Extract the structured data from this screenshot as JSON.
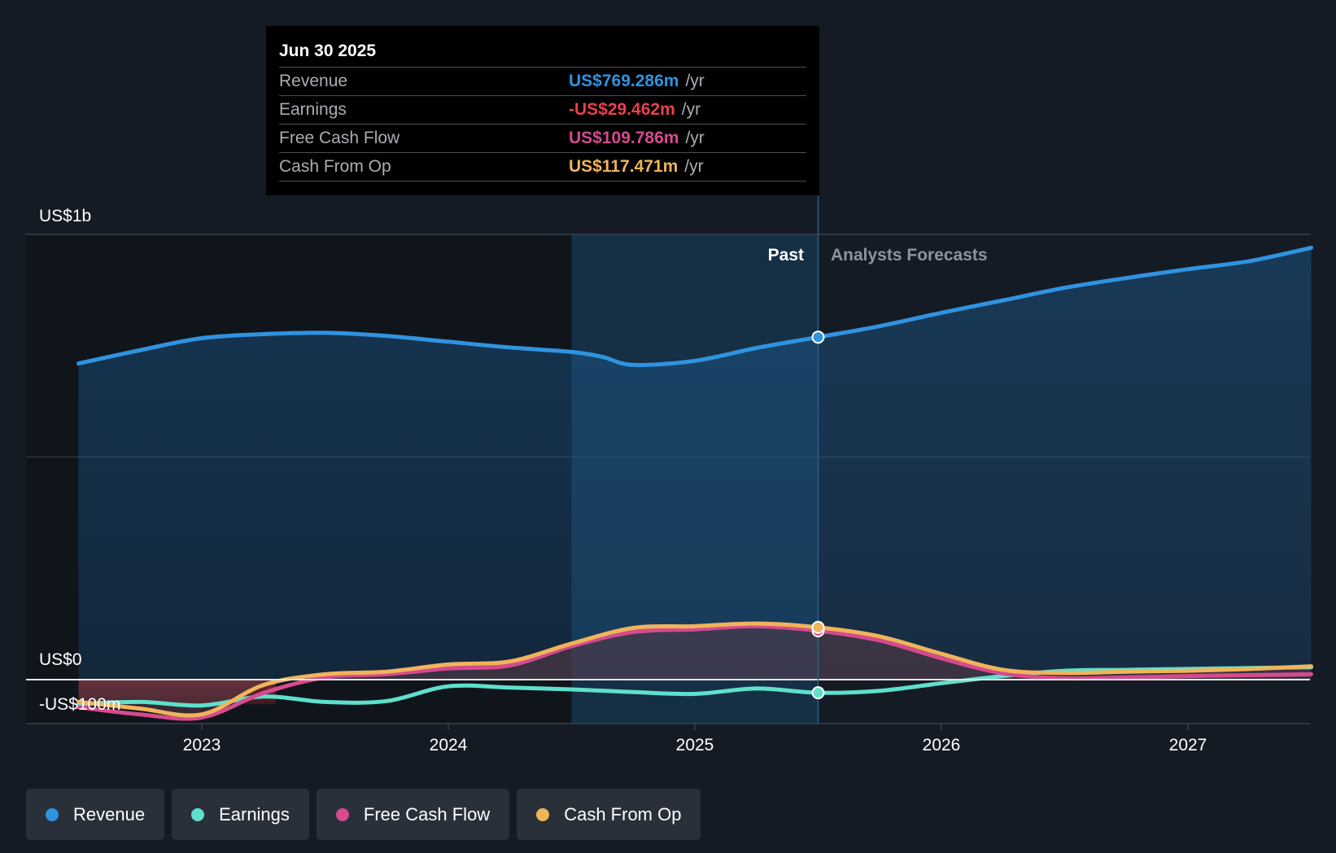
{
  "chart_data": {
    "type": "line",
    "title": "",
    "y_axis_labels": [
      "US$1b",
      "US$0",
      "-US$100m"
    ],
    "ylim": [
      -100,
      1000
    ],
    "y_units": "US$m",
    "x_ticks": [
      "2023",
      "2024",
      "2025",
      "2026",
      "2027"
    ],
    "past_label": "Past",
    "forecast_label": "Analysts Forecasts",
    "divider_x": 2025.5,
    "highlight_start": 2024.5,
    "series": [
      {
        "name": "Revenue",
        "color": "#2f93e0",
        "points": [
          [
            2022.5,
            710
          ],
          [
            2022.75,
            740
          ],
          [
            2023.0,
            767
          ],
          [
            2023.25,
            776
          ],
          [
            2023.5,
            779
          ],
          [
            2023.75,
            772
          ],
          [
            2024.0,
            759
          ],
          [
            2024.25,
            746
          ],
          [
            2024.5,
            736
          ],
          [
            2024.625,
            725
          ],
          [
            2024.75,
            707
          ],
          [
            2025.0,
            716
          ],
          [
            2025.25,
            745
          ],
          [
            2025.5,
            769.286
          ],
          [
            2025.75,
            794
          ],
          [
            2026.0,
            824
          ],
          [
            2026.25,
            852
          ],
          [
            2026.5,
            880
          ],
          [
            2026.75,
            902
          ],
          [
            2027.0,
            922
          ],
          [
            2027.25,
            940
          ],
          [
            2027.5,
            970
          ]
        ]
      },
      {
        "name": "Earnings",
        "color": "#5ee0cc",
        "points": [
          [
            2022.5,
            -55
          ],
          [
            2022.75,
            -50
          ],
          [
            2023.0,
            -58
          ],
          [
            2023.25,
            -38
          ],
          [
            2023.5,
            -50
          ],
          [
            2023.75,
            -48
          ],
          [
            2024.0,
            -15
          ],
          [
            2024.25,
            -18
          ],
          [
            2024.5,
            -22
          ],
          [
            2024.75,
            -28
          ],
          [
            2025.0,
            -32
          ],
          [
            2025.25,
            -20
          ],
          [
            2025.5,
            -29.462
          ],
          [
            2025.75,
            -25
          ],
          [
            2026.0,
            -8
          ],
          [
            2026.25,
            8
          ],
          [
            2026.5,
            20
          ],
          [
            2026.75,
            22
          ],
          [
            2027.0,
            24
          ],
          [
            2027.25,
            26
          ],
          [
            2027.5,
            28
          ]
        ]
      },
      {
        "name": "Free Cash Flow",
        "color": "#d64a8e",
        "points": [
          [
            2022.5,
            -62
          ],
          [
            2022.75,
            -78
          ],
          [
            2023.0,
            -85
          ],
          [
            2023.25,
            -30
          ],
          [
            2023.5,
            5
          ],
          [
            2023.75,
            12
          ],
          [
            2024.0,
            25
          ],
          [
            2024.25,
            32
          ],
          [
            2024.5,
            75
          ],
          [
            2024.75,
            107
          ],
          [
            2025.0,
            113
          ],
          [
            2025.25,
            120
          ],
          [
            2025.5,
            109.786
          ],
          [
            2025.75,
            88
          ],
          [
            2026.0,
            48
          ],
          [
            2026.25,
            14
          ],
          [
            2026.5,
            3
          ],
          [
            2026.75,
            5
          ],
          [
            2027.0,
            8
          ],
          [
            2027.25,
            10
          ],
          [
            2027.5,
            12
          ]
        ]
      },
      {
        "name": "Cash From Op",
        "color": "#f0b45a",
        "points": [
          [
            2022.5,
            -50
          ],
          [
            2022.75,
            -65
          ],
          [
            2023.0,
            -78
          ],
          [
            2023.25,
            -12
          ],
          [
            2023.5,
            12
          ],
          [
            2023.75,
            18
          ],
          [
            2024.0,
            34
          ],
          [
            2024.25,
            41
          ],
          [
            2024.5,
            81
          ],
          [
            2024.75,
            116
          ],
          [
            2025.0,
            120
          ],
          [
            2025.25,
            126
          ],
          [
            2025.5,
            117.471
          ],
          [
            2025.75,
            97
          ],
          [
            2026.0,
            58
          ],
          [
            2026.25,
            22
          ],
          [
            2026.5,
            15
          ],
          [
            2026.75,
            18
          ],
          [
            2027.0,
            20
          ],
          [
            2027.25,
            24
          ],
          [
            2027.5,
            30
          ]
        ]
      }
    ]
  },
  "tooltip": {
    "date": "Jun 30 2025",
    "rows": [
      {
        "label": "Revenue",
        "value": "US$769.286m",
        "unit": "/yr",
        "color": "#2f93e0"
      },
      {
        "label": "Earnings",
        "value": "-US$29.462m",
        "unit": "/yr",
        "color": "#e8414b"
      },
      {
        "label": "Free Cash Flow",
        "value": "US$109.786m",
        "unit": "/yr",
        "color": "#d64a8e"
      },
      {
        "label": "Cash From Op",
        "value": "US$117.471m",
        "unit": "/yr",
        "color": "#f0b45a"
      }
    ]
  },
  "legend": [
    {
      "label": "Revenue",
      "color": "#2f93e0"
    },
    {
      "label": "Earnings",
      "color": "#5ee0cc"
    },
    {
      "label": "Free Cash Flow",
      "color": "#d64a8e"
    },
    {
      "label": "Cash From Op",
      "color": "#f0b45a"
    }
  ]
}
